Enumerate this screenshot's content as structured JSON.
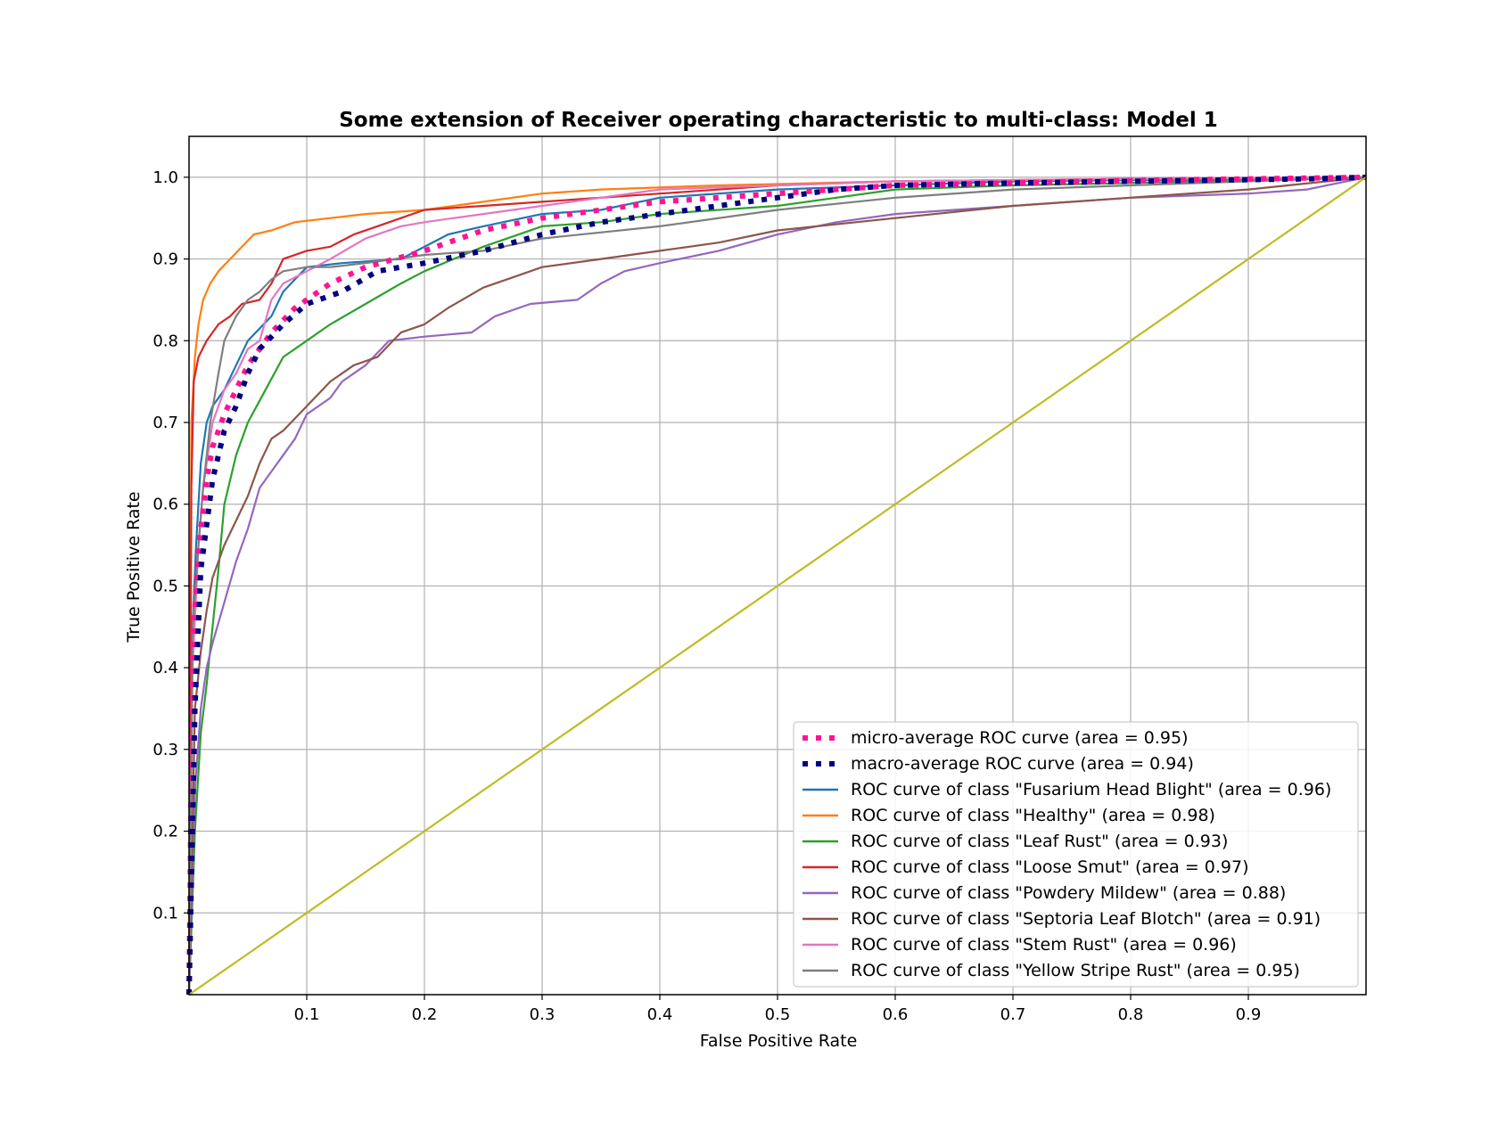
{
  "chart_data": {
    "type": "line",
    "title": "Some extension of Receiver operating characteristic to multi-class: Model 1",
    "xlabel": "False Positive Rate",
    "ylabel": "True Positive Rate",
    "xlim": [
      0,
      1
    ],
    "ylim": [
      0,
      1.05
    ],
    "xticks": [
      "0.1",
      "0.2",
      "0.3",
      "0.4",
      "0.5",
      "0.6",
      "0.7",
      "0.8",
      "0.9"
    ],
    "yticks": [
      "0.1",
      "0.2",
      "0.3",
      "0.4",
      "0.5",
      "0.6",
      "0.7",
      "0.8",
      "0.9",
      "1.0"
    ],
    "grid": true,
    "legend_position": "lower-right",
    "series": [
      {
        "name": "micro-average ROC curve (area = 0.95)",
        "color": "#ff1493",
        "style": "dotted",
        "points": [
          [
            0,
            0
          ],
          [
            0.003,
            0.42
          ],
          [
            0.006,
            0.5
          ],
          [
            0.01,
            0.57
          ],
          [
            0.015,
            0.63
          ],
          [
            0.02,
            0.67
          ],
          [
            0.03,
            0.71
          ],
          [
            0.04,
            0.74
          ],
          [
            0.05,
            0.77
          ],
          [
            0.07,
            0.81
          ],
          [
            0.09,
            0.84
          ],
          [
            0.12,
            0.87
          ],
          [
            0.15,
            0.89
          ],
          [
            0.2,
            0.91
          ],
          [
            0.25,
            0.935
          ],
          [
            0.3,
            0.95
          ],
          [
            0.35,
            0.96
          ],
          [
            0.4,
            0.97
          ],
          [
            0.5,
            0.98
          ],
          [
            0.6,
            0.99
          ],
          [
            0.7,
            0.993
          ],
          [
            0.8,
            0.996
          ],
          [
            0.9,
            0.998
          ],
          [
            1,
            1
          ]
        ]
      },
      {
        "name": "macro-average ROC curve (area = 0.94)",
        "color": "#000080",
        "style": "dotted",
        "points": [
          [
            0,
            0
          ],
          [
            0.005,
            0.35
          ],
          [
            0.01,
            0.52
          ],
          [
            0.02,
            0.63
          ],
          [
            0.03,
            0.69
          ],
          [
            0.04,
            0.72
          ],
          [
            0.05,
            0.76
          ],
          [
            0.06,
            0.79
          ],
          [
            0.08,
            0.82
          ],
          [
            0.1,
            0.845
          ],
          [
            0.13,
            0.86
          ],
          [
            0.16,
            0.885
          ],
          [
            0.2,
            0.895
          ],
          [
            0.25,
            0.91
          ],
          [
            0.3,
            0.93
          ],
          [
            0.35,
            0.945
          ],
          [
            0.4,
            0.955
          ],
          [
            0.5,
            0.975
          ],
          [
            0.55,
            0.985
          ],
          [
            0.6,
            0.99
          ],
          [
            0.7,
            0.993
          ],
          [
            0.8,
            0.995
          ],
          [
            0.9,
            0.997
          ],
          [
            0.95,
            0.998
          ],
          [
            1,
            1
          ]
        ]
      },
      {
        "name": "ROC curve of class \"Fusarium Head Blight\" (area = 0.96)",
        "color": "#1f77b4",
        "style": "solid",
        "points": [
          [
            0,
            0
          ],
          [
            0.003,
            0.45
          ],
          [
            0.006,
            0.55
          ],
          [
            0.01,
            0.65
          ],
          [
            0.015,
            0.7
          ],
          [
            0.02,
            0.72
          ],
          [
            0.03,
            0.74
          ],
          [
            0.04,
            0.77
          ],
          [
            0.05,
            0.8
          ],
          [
            0.07,
            0.83
          ],
          [
            0.08,
            0.86
          ],
          [
            0.1,
            0.89
          ],
          [
            0.13,
            0.895
          ],
          [
            0.18,
            0.9
          ],
          [
            0.22,
            0.93
          ],
          [
            0.25,
            0.94
          ],
          [
            0.3,
            0.955
          ],
          [
            0.35,
            0.96
          ],
          [
            0.4,
            0.975
          ],
          [
            0.5,
            0.985
          ],
          [
            0.6,
            0.99
          ],
          [
            0.7,
            0.995
          ],
          [
            0.85,
            0.997
          ],
          [
            1,
            1
          ]
        ]
      },
      {
        "name": "ROC curve of class \"Healthy\" (area = 0.98)",
        "color": "#ff7f0e",
        "style": "solid",
        "points": [
          [
            0,
            0
          ],
          [
            0.002,
            0.7
          ],
          [
            0.005,
            0.78
          ],
          [
            0.008,
            0.82
          ],
          [
            0.012,
            0.85
          ],
          [
            0.018,
            0.87
          ],
          [
            0.025,
            0.885
          ],
          [
            0.035,
            0.9
          ],
          [
            0.045,
            0.915
          ],
          [
            0.055,
            0.93
          ],
          [
            0.07,
            0.935
          ],
          [
            0.09,
            0.945
          ],
          [
            0.12,
            0.95
          ],
          [
            0.15,
            0.955
          ],
          [
            0.2,
            0.96
          ],
          [
            0.25,
            0.97
          ],
          [
            0.3,
            0.98
          ],
          [
            0.35,
            0.985
          ],
          [
            0.45,
            0.99
          ],
          [
            0.6,
            0.995
          ],
          [
            0.8,
            0.998
          ],
          [
            1,
            1
          ]
        ]
      },
      {
        "name": "ROC curve of class \"Leaf Rust\" (area = 0.93)",
        "color": "#2ca02c",
        "style": "solid",
        "points": [
          [
            0,
            0
          ],
          [
            0.005,
            0.2
          ],
          [
            0.01,
            0.32
          ],
          [
            0.015,
            0.38
          ],
          [
            0.02,
            0.45
          ],
          [
            0.025,
            0.52
          ],
          [
            0.03,
            0.6
          ],
          [
            0.04,
            0.66
          ],
          [
            0.05,
            0.7
          ],
          [
            0.065,
            0.74
          ],
          [
            0.08,
            0.78
          ],
          [
            0.1,
            0.8
          ],
          [
            0.12,
            0.82
          ],
          [
            0.15,
            0.845
          ],
          [
            0.18,
            0.87
          ],
          [
            0.2,
            0.885
          ],
          [
            0.25,
            0.915
          ],
          [
            0.3,
            0.94
          ],
          [
            0.35,
            0.945
          ],
          [
            0.4,
            0.955
          ],
          [
            0.5,
            0.965
          ],
          [
            0.55,
            0.975
          ],
          [
            0.6,
            0.985
          ],
          [
            0.7,
            0.99
          ],
          [
            0.8,
            0.993
          ],
          [
            1,
            1
          ]
        ]
      },
      {
        "name": "ROC curve of class \"Loose Smut\" (area = 0.97)",
        "color": "#d62728",
        "style": "solid",
        "points": [
          [
            0,
            0
          ],
          [
            0.002,
            0.62
          ],
          [
            0.004,
            0.75
          ],
          [
            0.008,
            0.78
          ],
          [
            0.015,
            0.8
          ],
          [
            0.025,
            0.82
          ],
          [
            0.035,
            0.83
          ],
          [
            0.045,
            0.845
          ],
          [
            0.06,
            0.85
          ],
          [
            0.07,
            0.87
          ],
          [
            0.08,
            0.9
          ],
          [
            0.1,
            0.91
          ],
          [
            0.12,
            0.915
          ],
          [
            0.14,
            0.93
          ],
          [
            0.16,
            0.94
          ],
          [
            0.18,
            0.95
          ],
          [
            0.2,
            0.96
          ],
          [
            0.25,
            0.965
          ],
          [
            0.3,
            0.97
          ],
          [
            0.4,
            0.98
          ],
          [
            0.5,
            0.99
          ],
          [
            0.6,
            0.995
          ],
          [
            0.8,
            0.998
          ],
          [
            1,
            1
          ]
        ]
      },
      {
        "name": "ROC curve of class \"Powdery Mildew\" (area = 0.88)",
        "color": "#9467bd",
        "style": "solid",
        "points": [
          [
            0,
            0
          ],
          [
            0.005,
            0.25
          ],
          [
            0.01,
            0.35
          ],
          [
            0.015,
            0.4
          ],
          [
            0.02,
            0.43
          ],
          [
            0.03,
            0.48
          ],
          [
            0.04,
            0.53
          ],
          [
            0.05,
            0.57
          ],
          [
            0.06,
            0.62
          ],
          [
            0.07,
            0.64
          ],
          [
            0.08,
            0.66
          ],
          [
            0.09,
            0.68
          ],
          [
            0.1,
            0.71
          ],
          [
            0.12,
            0.73
          ],
          [
            0.13,
            0.75
          ],
          [
            0.15,
            0.77
          ],
          [
            0.17,
            0.8
          ],
          [
            0.2,
            0.805
          ],
          [
            0.24,
            0.81
          ],
          [
            0.26,
            0.83
          ],
          [
            0.29,
            0.845
          ],
          [
            0.33,
            0.85
          ],
          [
            0.35,
            0.87
          ],
          [
            0.37,
            0.885
          ],
          [
            0.4,
            0.895
          ],
          [
            0.45,
            0.91
          ],
          [
            0.5,
            0.93
          ],
          [
            0.55,
            0.945
          ],
          [
            0.6,
            0.955
          ],
          [
            0.7,
            0.965
          ],
          [
            0.8,
            0.975
          ],
          [
            0.9,
            0.98
          ],
          [
            0.95,
            0.985
          ],
          [
            1,
            1
          ]
        ]
      },
      {
        "name": "ROC curve of class \"Septoria Leaf Blotch\" (area = 0.91)",
        "color": "#8c564b",
        "style": "solid",
        "points": [
          [
            0,
            0
          ],
          [
            0.005,
            0.35
          ],
          [
            0.01,
            0.42
          ],
          [
            0.015,
            0.47
          ],
          [
            0.02,
            0.51
          ],
          [
            0.03,
            0.55
          ],
          [
            0.04,
            0.58
          ],
          [
            0.05,
            0.61
          ],
          [
            0.06,
            0.65
          ],
          [
            0.07,
            0.68
          ],
          [
            0.08,
            0.69
          ],
          [
            0.1,
            0.72
          ],
          [
            0.12,
            0.75
          ],
          [
            0.14,
            0.77
          ],
          [
            0.16,
            0.78
          ],
          [
            0.18,
            0.81
          ],
          [
            0.2,
            0.82
          ],
          [
            0.22,
            0.84
          ],
          [
            0.25,
            0.865
          ],
          [
            0.28,
            0.88
          ],
          [
            0.3,
            0.89
          ],
          [
            0.35,
            0.9
          ],
          [
            0.4,
            0.91
          ],
          [
            0.45,
            0.92
          ],
          [
            0.5,
            0.935
          ],
          [
            0.6,
            0.95
          ],
          [
            0.7,
            0.965
          ],
          [
            0.8,
            0.975
          ],
          [
            0.9,
            0.985
          ],
          [
            1,
            1
          ]
        ]
      },
      {
        "name": "ROC curve of class \"Stem Rust\" (area = 0.96)",
        "color": "#e377c2",
        "style": "solid",
        "points": [
          [
            0,
            0
          ],
          [
            0.003,
            0.4
          ],
          [
            0.008,
            0.55
          ],
          [
            0.012,
            0.62
          ],
          [
            0.02,
            0.7
          ],
          [
            0.03,
            0.74
          ],
          [
            0.04,
            0.76
          ],
          [
            0.05,
            0.79
          ],
          [
            0.06,
            0.8
          ],
          [
            0.07,
            0.85
          ],
          [
            0.08,
            0.87
          ],
          [
            0.1,
            0.885
          ],
          [
            0.12,
            0.9
          ],
          [
            0.15,
            0.925
          ],
          [
            0.18,
            0.94
          ],
          [
            0.2,
            0.945
          ],
          [
            0.25,
            0.955
          ],
          [
            0.3,
            0.965
          ],
          [
            0.35,
            0.975
          ],
          [
            0.4,
            0.985
          ],
          [
            0.5,
            0.99
          ],
          [
            0.6,
            0.995
          ],
          [
            0.8,
            0.998
          ],
          [
            1,
            1
          ]
        ]
      },
      {
        "name": "ROC curve of class \"Yellow Stripe Rust\" (area = 0.95)",
        "color": "#7f7f7f",
        "style": "solid",
        "points": [
          [
            0,
            0
          ],
          [
            0.003,
            0.45
          ],
          [
            0.008,
            0.55
          ],
          [
            0.012,
            0.62
          ],
          [
            0.018,
            0.7
          ],
          [
            0.025,
            0.76
          ],
          [
            0.03,
            0.8
          ],
          [
            0.04,
            0.83
          ],
          [
            0.05,
            0.85
          ],
          [
            0.06,
            0.86
          ],
          [
            0.07,
            0.875
          ],
          [
            0.08,
            0.885
          ],
          [
            0.1,
            0.89
          ],
          [
            0.12,
            0.89
          ],
          [
            0.15,
            0.895
          ],
          [
            0.2,
            0.905
          ],
          [
            0.25,
            0.91
          ],
          [
            0.3,
            0.925
          ],
          [
            0.4,
            0.94
          ],
          [
            0.5,
            0.96
          ],
          [
            0.6,
            0.975
          ],
          [
            0.7,
            0.985
          ],
          [
            0.8,
            0.99
          ],
          [
            0.9,
            0.995
          ],
          [
            1,
            1
          ]
        ]
      },
      {
        "name": "",
        "color": "#bcbd22",
        "style": "solid",
        "legend": false,
        "points": [
          [
            0,
            0
          ],
          [
            1,
            1
          ]
        ]
      }
    ]
  }
}
